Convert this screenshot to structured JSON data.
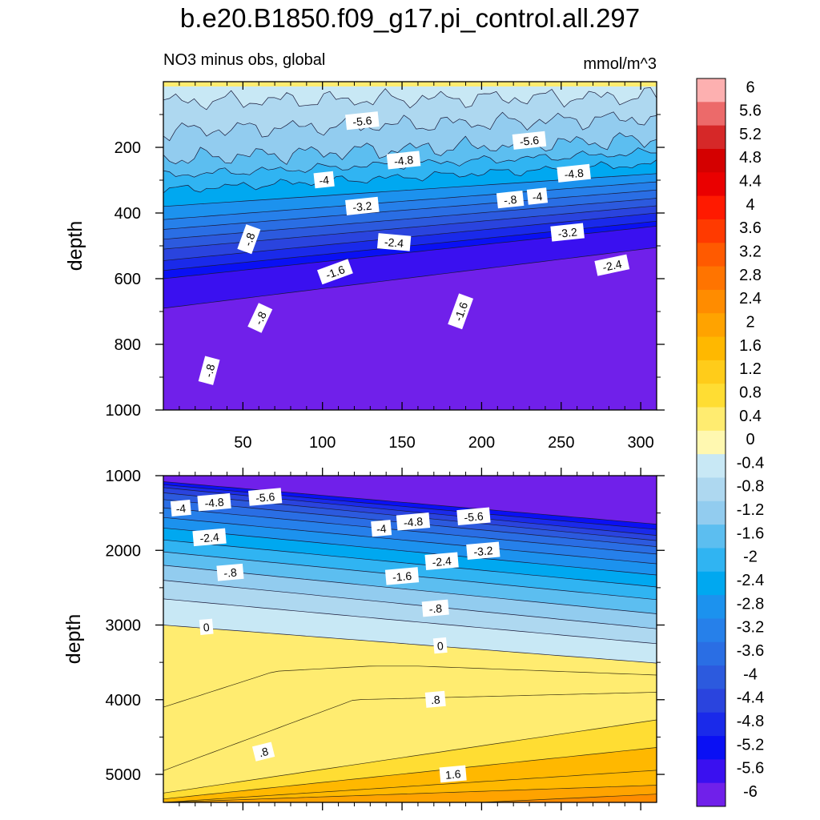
{
  "chart_data": {
    "type": "contour",
    "title": "b.e20.B1850.f09_g17.pi_control.all.297",
    "subtitle_left": "NO3 minus obs, global",
    "subtitle_right": "mmol/m^3",
    "ylabel": "depth",
    "colorbar": {
      "labels": [
        "6",
        "5.6",
        "5.2",
        "4.8",
        "4.4",
        "4",
        "3.6",
        "3.2",
        "2.8",
        "2.4",
        "2",
        "1.6",
        "1.2",
        "0.8",
        "0.4",
        "0",
        "-0.4",
        "-0.8",
        "-1.2",
        "-1.6",
        "-2",
        "-2.4",
        "-2.8",
        "-3.2",
        "-3.6",
        "-4",
        "-4.4",
        "-4.8",
        "-5.2",
        "-5.6",
        "-6"
      ],
      "colors": [
        "#fdb0b0",
        "#ec6a6a",
        "#d62828",
        "#d40000",
        "#ea0000",
        "#ff1a00",
        "#ff3a00",
        "#ff5a00",
        "#ff7400",
        "#ff8c00",
        "#ffa300",
        "#ffb800",
        "#ffcc1a",
        "#ffdd33",
        "#ffec70",
        "#fff8b0",
        "#c8e8f5",
        "#aed8f0",
        "#92ccef",
        "#5cbef0",
        "#30b4f2",
        "#00a8f0",
        "#1c92ee",
        "#2680ea",
        "#2a6ee4",
        "#2c5ade",
        "#2a44de",
        "#1a2aea",
        "#0a10f4",
        "#3a10f0",
        "#7020ea"
      ]
    },
    "upper_panel": {
      "x_ticks": [
        50,
        100,
        150,
        200,
        250,
        300
      ],
      "xlim": [
        0,
        310
      ],
      "y_ticks": [
        200,
        400,
        600,
        800,
        1000
      ],
      "ylim": [
        0,
        1000
      ],
      "contour_labels": [
        {
          "text": "-.8",
          "x": 29,
          "y": 88
        },
        {
          "text": "-.8",
          "x": 61,
          "y": 72
        },
        {
          "text": "-.8",
          "x": 54,
          "y": 48
        },
        {
          "text": "-.8",
          "x": 218,
          "y": 36
        },
        {
          "text": "-1.6",
          "x": 108,
          "y": 58
        },
        {
          "text": "-1.6",
          "x": 187,
          "y": 70
        },
        {
          "text": "-2.4",
          "x": 145,
          "y": 49
        },
        {
          "text": "-2.4",
          "x": 282,
          "y": 56
        },
        {
          "text": "-3.2",
          "x": 125,
          "y": 38
        },
        {
          "text": "-3.2",
          "x": 254,
          "y": 46
        },
        {
          "text": "-4",
          "x": 101,
          "y": 30
        },
        {
          "text": "-4",
          "x": 235,
          "y": 35
        },
        {
          "text": "-4.8",
          "x": 151,
          "y": 24
        },
        {
          "text": "-4.8",
          "x": 258,
          "y": 28
        },
        {
          "text": "-5.6",
          "x": 125,
          "y": 12
        },
        {
          "text": "-5.6",
          "x": 230,
          "y": 18
        }
      ]
    },
    "lower_panel": {
      "y_ticks": [
        1000,
        2000,
        3000,
        4000,
        5000
      ],
      "ylim": [
        1000,
        5375
      ],
      "xlim": [
        0,
        310
      ],
      "contour_labels": [
        {
          "text": "-4",
          "x": 11,
          "y": 1440
        },
        {
          "text": "-4.8",
          "x": 32,
          "y": 1360
        },
        {
          "text": "-5.6",
          "x": 64,
          "y": 1290
        },
        {
          "text": "-2.4",
          "x": 29,
          "y": 1830
        },
        {
          "text": "-.8",
          "x": 42,
          "y": 2300
        },
        {
          "text": "0",
          "x": 27,
          "y": 3030
        },
        {
          "text": "-4",
          "x": 137,
          "y": 1710
        },
        {
          "text": "-4.8",
          "x": 157,
          "y": 1620
        },
        {
          "text": "-5.6",
          "x": 195,
          "y": 1550
        },
        {
          "text": "-3.2",
          "x": 201,
          "y": 2010
        },
        {
          "text": "-2.4",
          "x": 175,
          "y": 2150
        },
        {
          "text": "-1.6",
          "x": 150,
          "y": 2350
        },
        {
          "text": "-.8",
          "x": 171,
          "y": 2780
        },
        {
          "text": "0",
          "x": 174,
          "y": 3280
        },
        {
          "text": ".8",
          "x": 171,
          "y": 4000
        },
        {
          "text": ".8",
          "x": 63,
          "y": 4700
        },
        {
          "text": "1.6",
          "x": 182,
          "y": 5000
        }
      ]
    }
  }
}
